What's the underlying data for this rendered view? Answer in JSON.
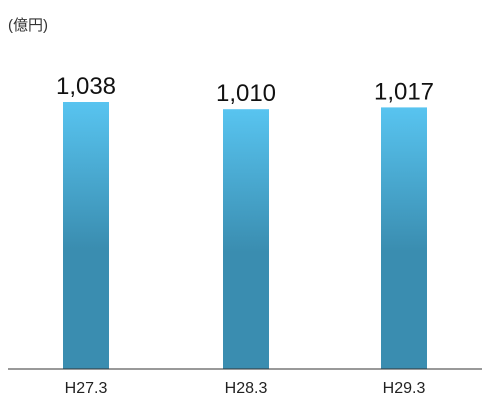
{
  "chart_data": {
    "type": "bar",
    "unit_label": "(億円)",
    "categories": [
      "H27.3",
      "H28.3",
      "H29.3"
    ],
    "values": [
      1038,
      1010,
      1017
    ],
    "value_labels": [
      "1,038",
      "1,010",
      "1,017"
    ],
    "ylim": [
      0,
      1038
    ],
    "grid": false,
    "legend": "none",
    "colors": {
      "bar_top": "#58c4f0",
      "bar_bottom": "#3a8db0",
      "axis": "#333333"
    }
  }
}
